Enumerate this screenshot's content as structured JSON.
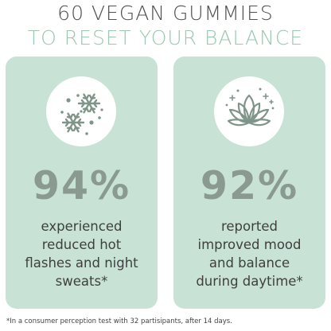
{
  "headline": {
    "line1": "60 VEGAN GUMMIES",
    "line2": "TO RESET YOUR BALANCE"
  },
  "cards": [
    {
      "icon": "snowflakes-icon",
      "percent": "94%",
      "lines": [
        "experienced",
        "reduced hot",
        "flashes and night",
        "sweats*"
      ]
    },
    {
      "icon": "lotus-icon",
      "percent": "92%",
      "lines": [
        "reported",
        "improved mood",
        "and balance",
        "during daytime*"
      ]
    }
  ],
  "footnote": "*In a consumer perception test with 32 partisipants, after 14 days.",
  "colors": {
    "card_background": "#c8e3d5",
    "accent_headline": "#9bc7b1",
    "percent_text": "#8a9a90",
    "icon_stroke": "#7f958a"
  }
}
